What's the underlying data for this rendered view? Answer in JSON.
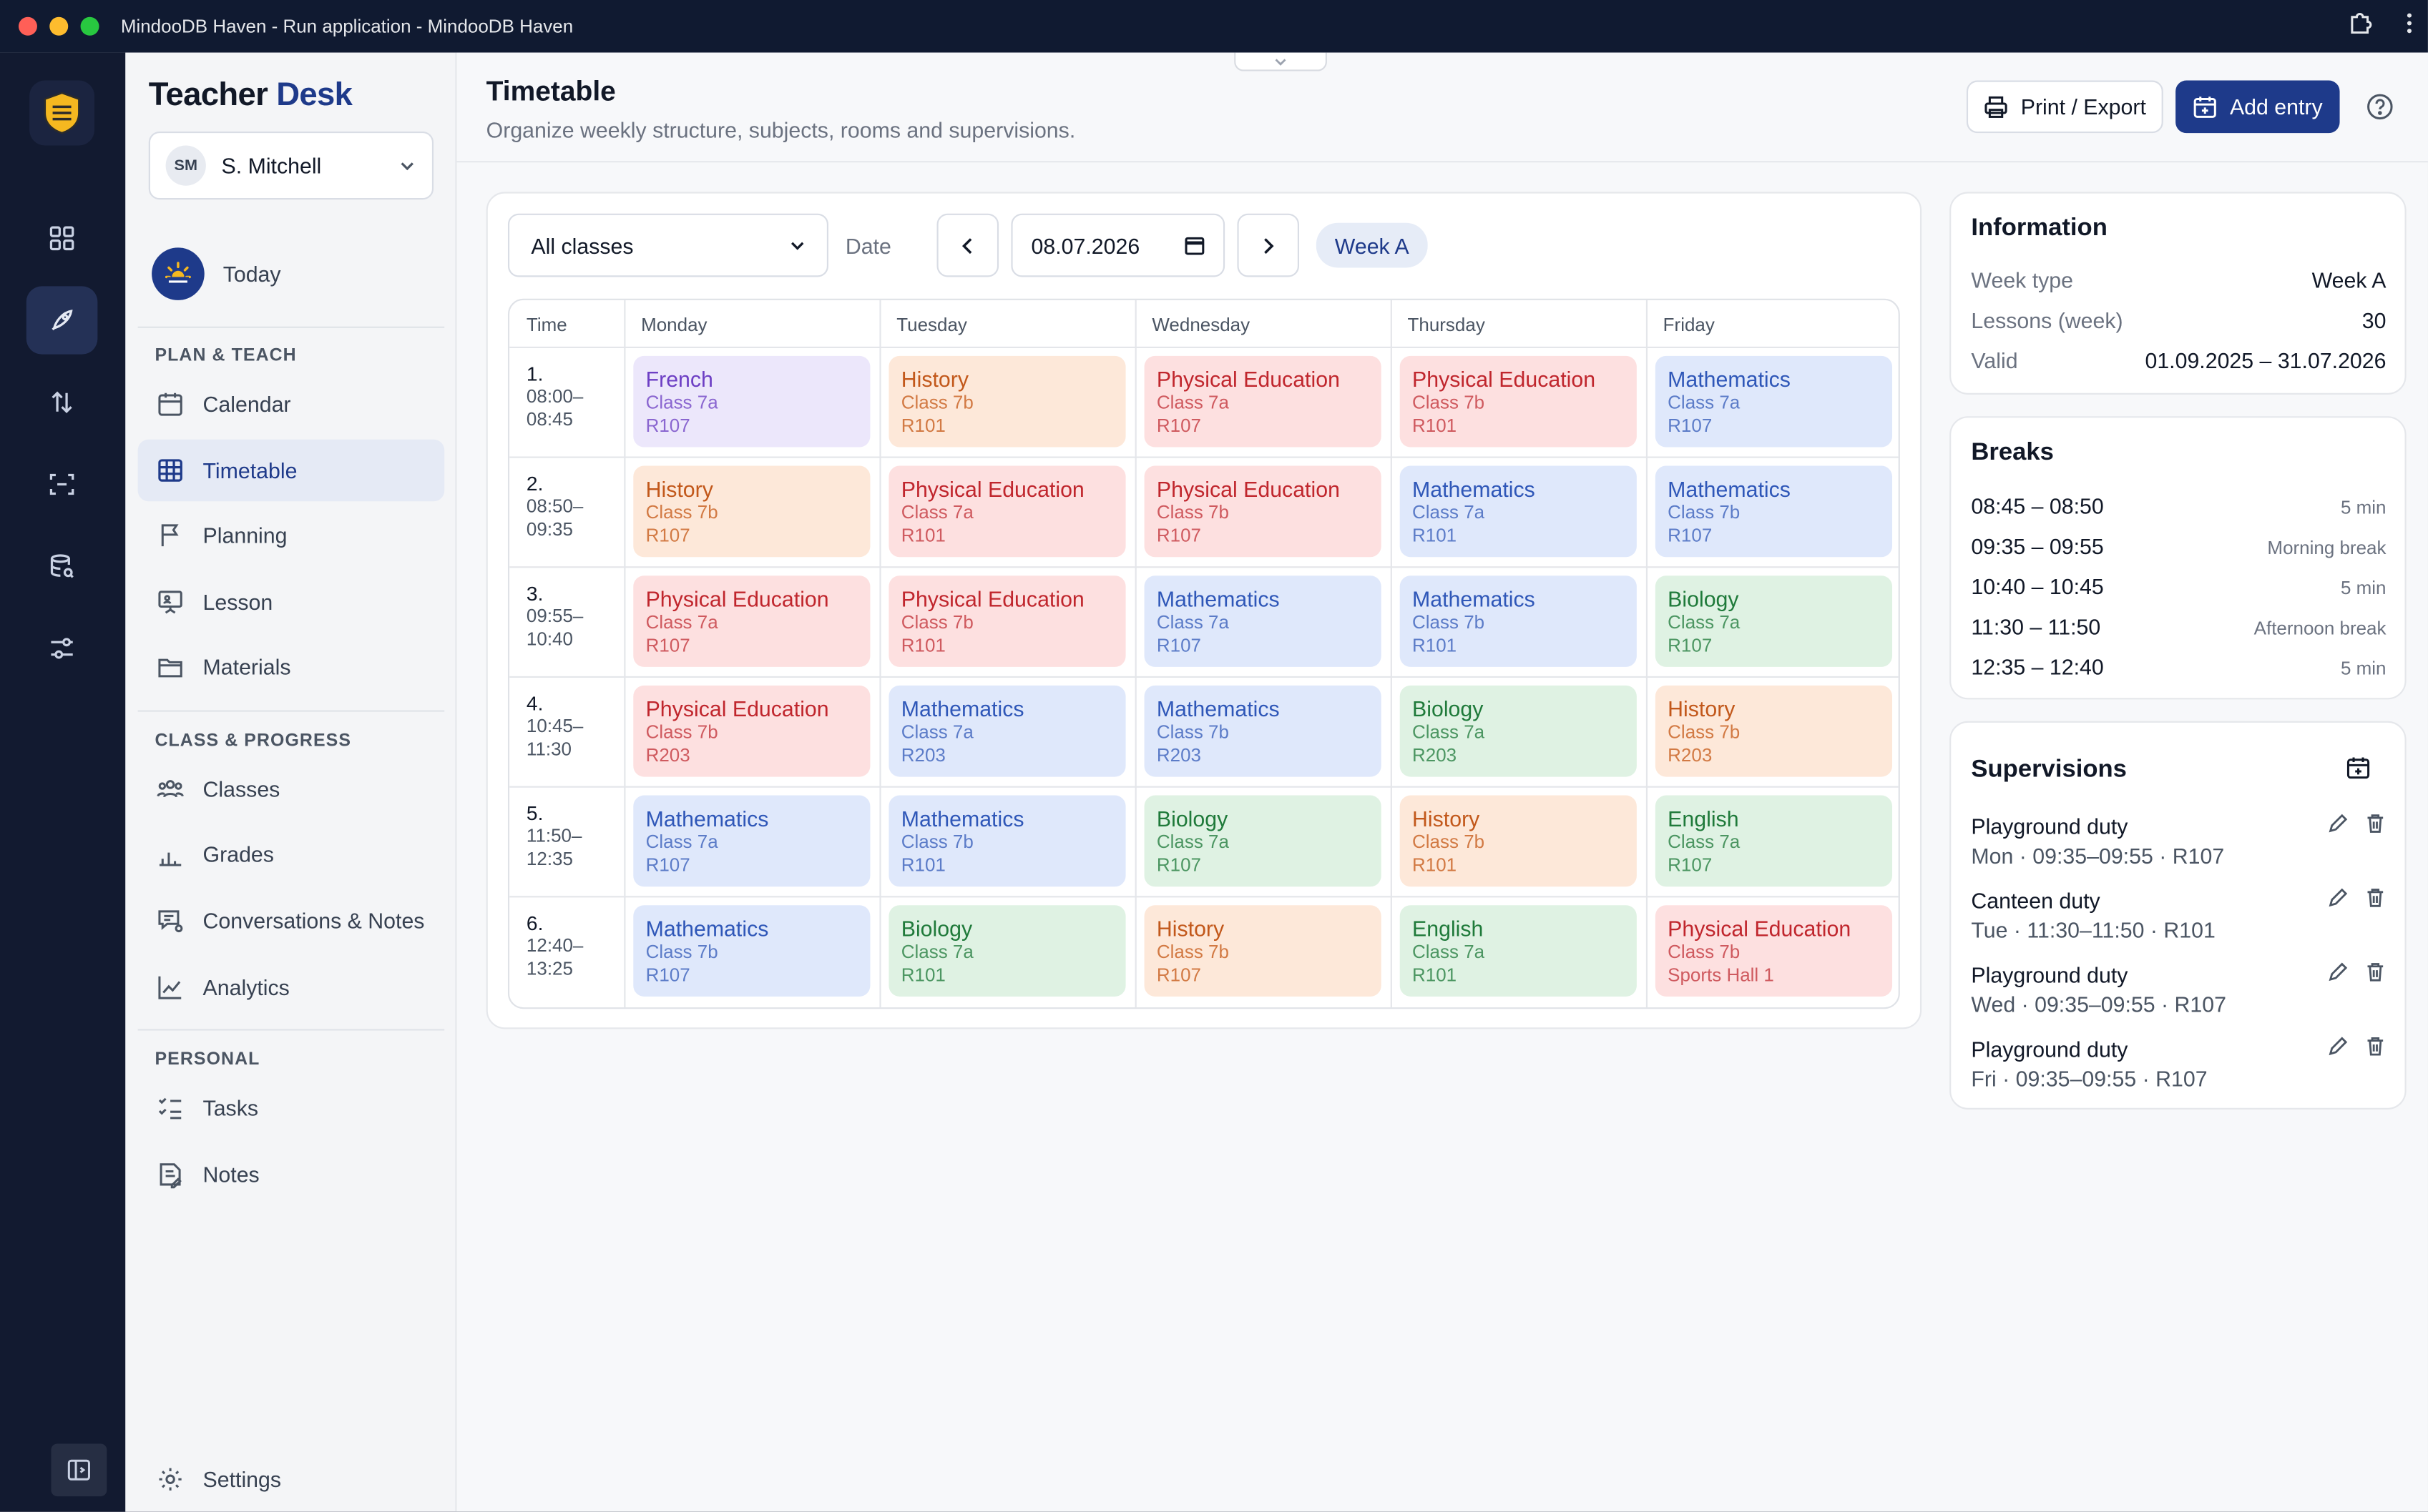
{
  "window": {
    "title": "MindooDB Haven - Run application - MindooDB Haven"
  },
  "sidebar": {
    "brand_a": "Teacher",
    "brand_b": "Desk",
    "user": {
      "initials": "SM",
      "name": "S. Mitchell"
    },
    "today": "Today",
    "sections": [
      "PLAN & TEACH",
      "CLASS & PROGRESS",
      "PERSONAL"
    ],
    "items": [
      {
        "label": "Calendar",
        "icon": "calendar-icon"
      },
      {
        "label": "Timetable",
        "icon": "grid-table-icon"
      },
      {
        "label": "Planning",
        "icon": "flag-icon"
      },
      {
        "label": "Lesson",
        "icon": "presentation-icon"
      },
      {
        "label": "Materials",
        "icon": "folder-icon"
      },
      {
        "label": "Classes",
        "icon": "people-icon"
      },
      {
        "label": "Grades",
        "icon": "bar-chart-icon"
      },
      {
        "label": "Conversations & Notes",
        "icon": "chat-icon"
      },
      {
        "label": "Analytics",
        "icon": "line-chart-icon"
      },
      {
        "label": "Tasks",
        "icon": "checklist-icon"
      },
      {
        "label": "Notes",
        "icon": "note-icon"
      }
    ],
    "settings": "Settings"
  },
  "header": {
    "title": "Timetable",
    "subtitle": "Organize weekly structure, subjects, rooms and supervisions.",
    "print_label": "Print / Export",
    "add_label": "Add entry"
  },
  "filters": {
    "class_select": "All classes",
    "date_label": "Date",
    "date_value": "08.07.2026",
    "week": "Week A"
  },
  "timetable": {
    "time_header": "Time",
    "days": [
      "Monday",
      "Tuesday",
      "Wednesday",
      "Thursday",
      "Friday"
    ],
    "periods": [
      {
        "num": "1.",
        "start": "08:00–",
        "end": "08:45"
      },
      {
        "num": "2.",
        "start": "08:50–",
        "end": "09:35"
      },
      {
        "num": "3.",
        "start": "09:55–",
        "end": "10:40"
      },
      {
        "num": "4.",
        "start": "10:45–",
        "end": "11:30"
      },
      {
        "num": "5.",
        "start": "11:50–",
        "end": "12:35"
      },
      {
        "num": "6.",
        "start": "12:40–",
        "end": "13:25"
      }
    ],
    "rows": [
      [
        {
          "subject": "French",
          "class": "Class 7a",
          "room": "R107"
        },
        {
          "subject": "History",
          "class": "Class 7b",
          "room": "R101"
        },
        {
          "subject": "Physical Education",
          "class": "Class 7a",
          "room": "R107"
        },
        {
          "subject": "Physical Education",
          "class": "Class 7b",
          "room": "R101"
        },
        {
          "subject": "Mathematics",
          "class": "Class 7a",
          "room": "R107"
        }
      ],
      [
        {
          "subject": "History",
          "class": "Class 7b",
          "room": "R107"
        },
        {
          "subject": "Physical Education",
          "class": "Class 7a",
          "room": "R101"
        },
        {
          "subject": "Physical Education",
          "class": "Class 7b",
          "room": "R107"
        },
        {
          "subject": "Mathematics",
          "class": "Class 7a",
          "room": "R101"
        },
        {
          "subject": "Mathematics",
          "class": "Class 7b",
          "room": "R107"
        }
      ],
      [
        {
          "subject": "Physical Education",
          "class": "Class 7a",
          "room": "R107"
        },
        {
          "subject": "Physical Education",
          "class": "Class 7b",
          "room": "R101"
        },
        {
          "subject": "Mathematics",
          "class": "Class 7a",
          "room": "R107"
        },
        {
          "subject": "Mathematics",
          "class": "Class 7b",
          "room": "R101"
        },
        {
          "subject": "Biology",
          "class": "Class 7a",
          "room": "R107"
        }
      ],
      [
        {
          "subject": "Physical Education",
          "class": "Class 7b",
          "room": "R203"
        },
        {
          "subject": "Mathematics",
          "class": "Class 7a",
          "room": "R203"
        },
        {
          "subject": "Mathematics",
          "class": "Class 7b",
          "room": "R203"
        },
        {
          "subject": "Biology",
          "class": "Class 7a",
          "room": "R203"
        },
        {
          "subject": "History",
          "class": "Class 7b",
          "room": "R203"
        }
      ],
      [
        {
          "subject": "Mathematics",
          "class": "Class 7a",
          "room": "R107"
        },
        {
          "subject": "Mathematics",
          "class": "Class 7b",
          "room": "R101"
        },
        {
          "subject": "Biology",
          "class": "Class 7a",
          "room": "R107"
        },
        {
          "subject": "History",
          "class": "Class 7b",
          "room": "R101"
        },
        {
          "subject": "English",
          "class": "Class 7a",
          "room": "R107"
        }
      ],
      [
        {
          "subject": "Mathematics",
          "class": "Class 7b",
          "room": "R107"
        },
        {
          "subject": "Biology",
          "class": "Class 7a",
          "room": "R101"
        },
        {
          "subject": "History",
          "class": "Class 7b",
          "room": "R107"
        },
        {
          "subject": "English",
          "class": "Class 7a",
          "room": "R101"
        },
        {
          "subject": "Physical Education",
          "class": "Class 7b",
          "room": "Sports Hall 1"
        }
      ]
    ]
  },
  "subject_colors": {
    "French": {
      "bg": "#ece7fb",
      "fg": "#6d3fc4",
      "sub": "#8a66d0"
    },
    "History": {
      "bg": "#fde8d9",
      "fg": "#c2581b",
      "sub": "#d27a44"
    },
    "Physical Education": {
      "bg": "#fde0e0",
      "fg": "#c0262d",
      "sub": "#cf5a5f"
    },
    "Mathematics": {
      "bg": "#dfe8fb",
      "fg": "#2f57b8",
      "sub": "#5c7cc8"
    },
    "Biology": {
      "bg": "#dff2e3",
      "fg": "#1f7a3a",
      "sub": "#4c9662"
    },
    "English": {
      "bg": "#dff2e3",
      "fg": "#1f7a3a",
      "sub": "#4c9662"
    }
  },
  "information": {
    "title": "Information",
    "rows": [
      {
        "k": "Week type",
        "v": "Week A"
      },
      {
        "k": "Lessons (week)",
        "v": "30"
      },
      {
        "k": "Valid",
        "v": "01.09.2025 – 31.07.2026"
      }
    ]
  },
  "breaks": {
    "title": "Breaks",
    "rows": [
      {
        "time": "08:45 – 08:50",
        "label": "5 min"
      },
      {
        "time": "09:35 – 09:55",
        "label": "Morning break"
      },
      {
        "time": "10:40 – 10:45",
        "label": "5 min"
      },
      {
        "time": "11:30 – 11:50",
        "label": "Afternoon break"
      },
      {
        "time": "12:35 – 12:40",
        "label": "5 min"
      }
    ]
  },
  "supervisions": {
    "title": "Supervisions",
    "rows": [
      {
        "name": "Playground duty",
        "detail": "Mon · 09:35–09:55 · R107"
      },
      {
        "name": "Canteen duty",
        "detail": "Tue · 11:30–11:50 · R101"
      },
      {
        "name": "Playground duty",
        "detail": "Wed · 09:35–09:55 · R107"
      },
      {
        "name": "Playground duty",
        "detail": "Fri · 09:35–09:55 · R107"
      }
    ]
  }
}
